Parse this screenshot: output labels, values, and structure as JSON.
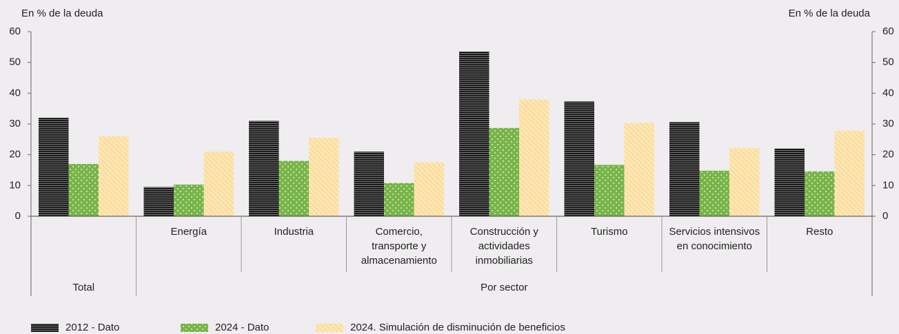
{
  "chart_data": {
    "type": "bar",
    "ylabel": "En % de la deuda",
    "y2label": "En % de la deuda",
    "categories": [
      null,
      "Energía",
      "Industria",
      "Comercio, transporte y almacenamiento",
      "Construcción y actividades inmobiliarias",
      "Turismo",
      "Servicios intensivos en conocimiento",
      "Resto"
    ],
    "groups": [
      "Total",
      "Por sector"
    ],
    "series": [
      {
        "name": "2012 - Dato",
        "color": "#1a1a1a",
        "values": [
          32,
          9.5,
          31,
          21,
          53.5,
          37.3,
          30.6,
          22
        ]
      },
      {
        "name": "2024 - Dato",
        "color": "#78b548",
        "values": [
          17,
          10.3,
          18,
          10.8,
          28.7,
          16.7,
          14.8,
          14.6
        ]
      },
      {
        "name": "2024. Simulación de disminución de beneficios",
        "color": "#fde7b4",
        "values": [
          26,
          21,
          25.5,
          17.5,
          38,
          30.3,
          22.2,
          27.8
        ]
      }
    ],
    "ylim": [
      0,
      60
    ],
    "yticks": [
      0,
      10,
      20,
      30,
      40,
      50,
      60
    ],
    "y2lim": [
      0,
      60
    ],
    "y2ticks": [
      0,
      10,
      20,
      30,
      40,
      50,
      60
    ],
    "grid": false
  }
}
